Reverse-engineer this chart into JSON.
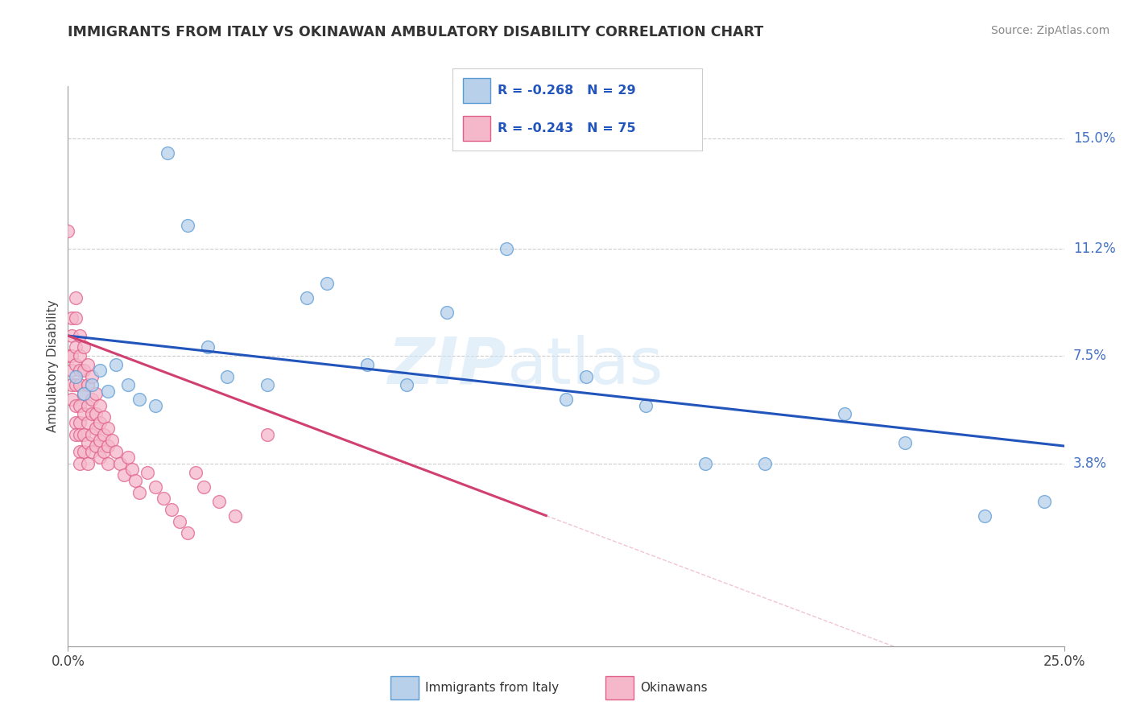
{
  "title": "IMMIGRANTS FROM ITALY VS OKINAWAN AMBULATORY DISABILITY CORRELATION CHART",
  "source": "Source: ZipAtlas.com",
  "ylabel": "Ambulatory Disability",
  "xlim": [
    0.0,
    0.25
  ],
  "ylim": [
    -0.025,
    0.168
  ],
  "ytick_labels_right": [
    "15.0%",
    "11.2%",
    "7.5%",
    "3.8%"
  ],
  "ytick_values_right": [
    0.15,
    0.112,
    0.075,
    0.038
  ],
  "legend_label1": "Immigrants from Italy",
  "legend_label2": "Okinawans",
  "r1": "-0.268",
  "n1": "29",
  "r2": "-0.243",
  "n2": "75",
  "color_italy": "#b8d0ea",
  "color_okinawa": "#f5b8cb",
  "color_italy_edge": "#5b9bd5",
  "color_okinawa_edge": "#e0608a",
  "line_italy": "#2255bb",
  "line_okinawa": "#d04070",
  "watermark_zip": "ZIP",
  "watermark_atlas": "atlas",
  "italy_x": [
    0.002,
    0.004,
    0.006,
    0.008,
    0.01,
    0.012,
    0.015,
    0.018,
    0.022,
    0.025,
    0.03,
    0.035,
    0.04,
    0.05,
    0.06,
    0.065,
    0.075,
    0.085,
    0.095,
    0.11,
    0.125,
    0.13,
    0.145,
    0.16,
    0.175,
    0.195,
    0.21,
    0.23,
    0.245
  ],
  "italy_y": [
    0.068,
    0.062,
    0.065,
    0.07,
    0.063,
    0.072,
    0.065,
    0.06,
    0.058,
    0.145,
    0.12,
    0.078,
    0.068,
    0.065,
    0.095,
    0.1,
    0.072,
    0.065,
    0.09,
    0.112,
    0.06,
    0.068,
    0.058,
    0.038,
    0.038,
    0.055,
    0.045,
    0.02,
    0.025
  ],
  "okinawa_x": [
    0.0,
    0.0,
    0.001,
    0.001,
    0.001,
    0.001,
    0.001,
    0.001,
    0.002,
    0.002,
    0.002,
    0.002,
    0.002,
    0.002,
    0.002,
    0.002,
    0.003,
    0.003,
    0.003,
    0.003,
    0.003,
    0.003,
    0.003,
    0.003,
    0.003,
    0.004,
    0.004,
    0.004,
    0.004,
    0.004,
    0.004,
    0.005,
    0.005,
    0.005,
    0.005,
    0.005,
    0.005,
    0.006,
    0.006,
    0.006,
    0.006,
    0.006,
    0.007,
    0.007,
    0.007,
    0.007,
    0.008,
    0.008,
    0.008,
    0.008,
    0.009,
    0.009,
    0.009,
    0.01,
    0.01,
    0.01,
    0.011,
    0.012,
    0.013,
    0.014,
    0.015,
    0.016,
    0.017,
    0.018,
    0.02,
    0.022,
    0.024,
    0.026,
    0.028,
    0.03,
    0.032,
    0.034,
    0.038,
    0.042,
    0.05
  ],
  "okinawa_y": [
    0.118,
    0.075,
    0.088,
    0.082,
    0.075,
    0.07,
    0.065,
    0.06,
    0.095,
    0.088,
    0.078,
    0.072,
    0.065,
    0.058,
    0.052,
    0.048,
    0.082,
    0.075,
    0.07,
    0.065,
    0.058,
    0.052,
    0.048,
    0.042,
    0.038,
    0.078,
    0.07,
    0.062,
    0.055,
    0.048,
    0.042,
    0.072,
    0.065,
    0.058,
    0.052,
    0.045,
    0.038,
    0.068,
    0.06,
    0.055,
    0.048,
    0.042,
    0.062,
    0.055,
    0.05,
    0.044,
    0.058,
    0.052,
    0.046,
    0.04,
    0.054,
    0.048,
    0.042,
    0.05,
    0.044,
    0.038,
    0.046,
    0.042,
    0.038,
    0.034,
    0.04,
    0.036,
    0.032,
    0.028,
    0.035,
    0.03,
    0.026,
    0.022,
    0.018,
    0.014,
    0.035,
    0.03,
    0.025,
    0.02,
    0.048
  ],
  "italy_line_x0": 0.0,
  "italy_line_y0": 0.082,
  "italy_line_x1": 0.25,
  "italy_line_y1": 0.044,
  "okinawa_line_x0": 0.0,
  "okinawa_line_y0": 0.082,
  "okinawa_line_x1": 0.12,
  "okinawa_line_y1": 0.02
}
